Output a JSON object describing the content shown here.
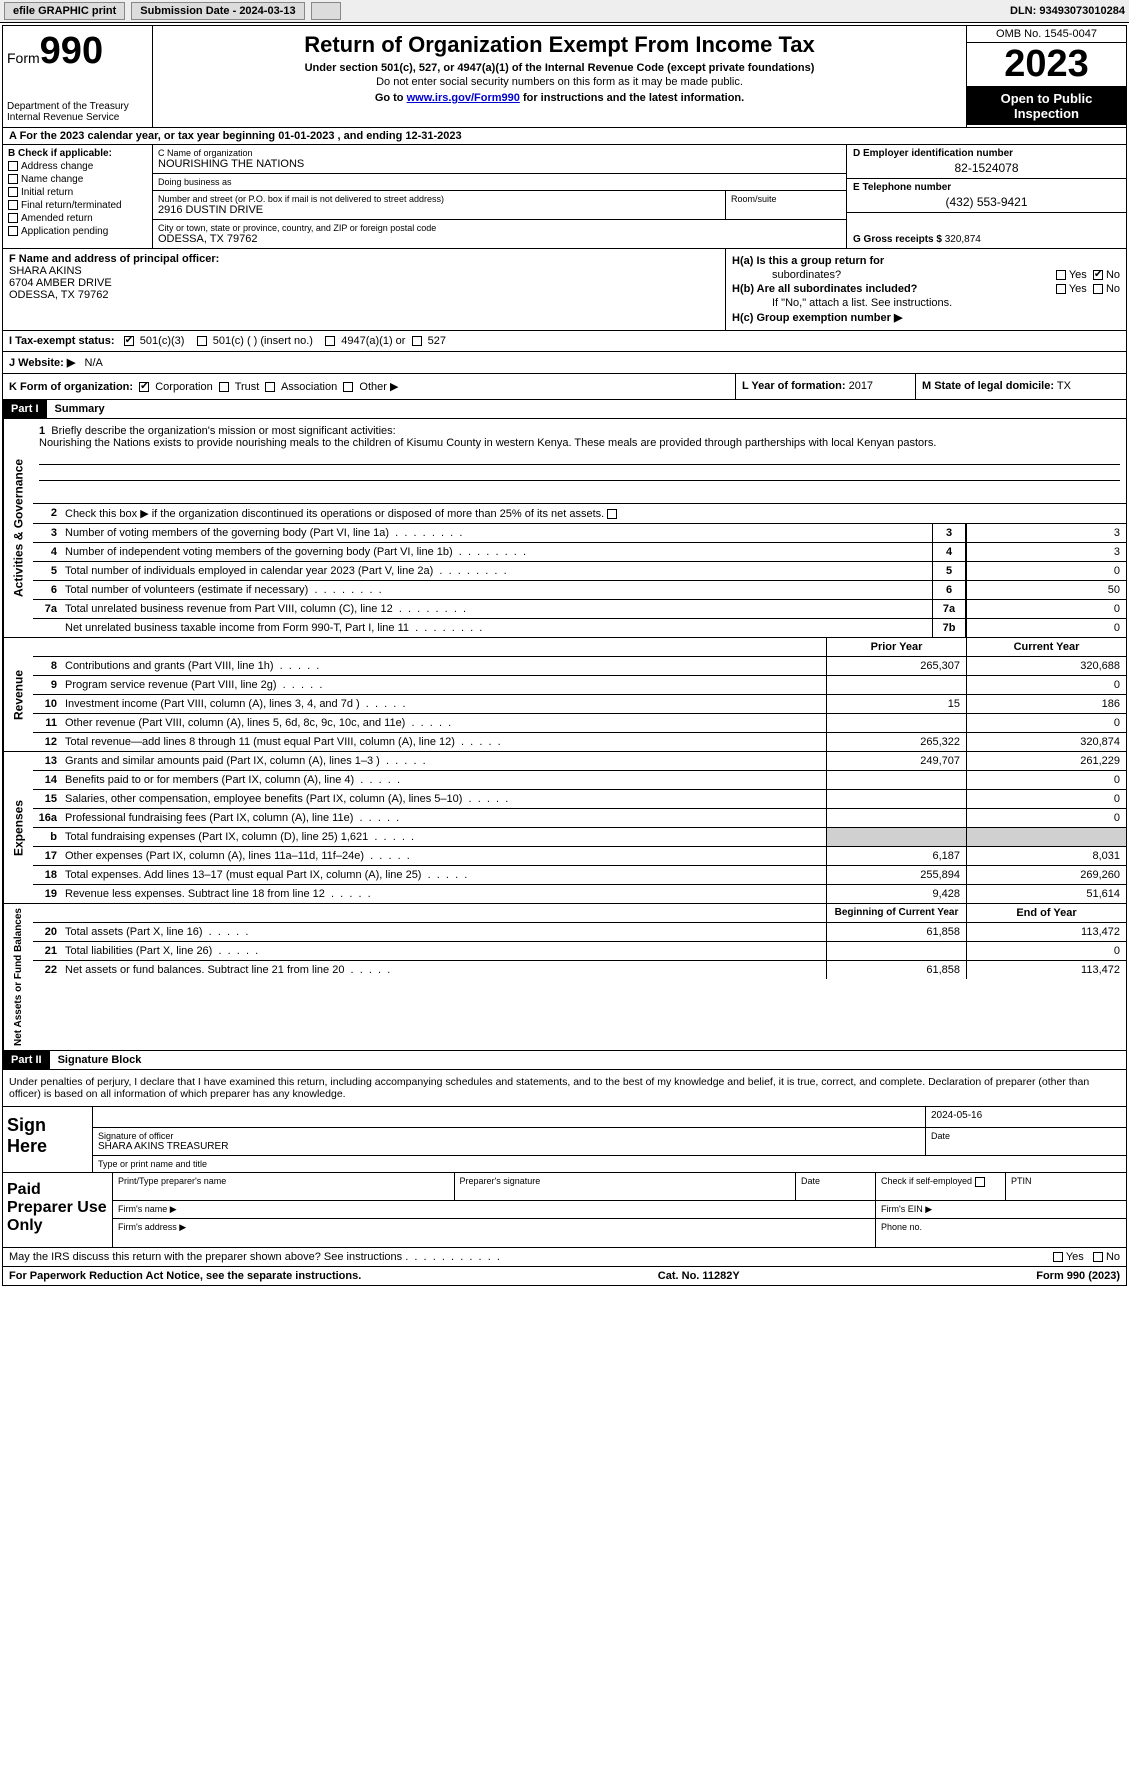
{
  "topbar": {
    "efile_label": "efile GRAPHIC print",
    "submission_label": "Submission Date - 2024-03-13",
    "dln_label": "DLN: 93493073010284"
  },
  "header": {
    "form_label": "Form",
    "form_num": "990",
    "dept": "Department of the Treasury\nInternal Revenue Service",
    "title": "Return of Organization Exempt From Income Tax",
    "sub": "Under section 501(c), 527, or 4947(a)(1) of the Internal Revenue Code (except private foundations)",
    "note": "Do not enter social security numbers on this form as it may be made public.",
    "note2_pre": "Go to ",
    "note2_link": "www.irs.gov/Form990",
    "note2_post": " for instructions and the latest information.",
    "omb": "OMB No. 1545-0047",
    "year": "2023",
    "inspection": "Open to Public Inspection"
  },
  "line_a": "A For the 2023 calendar year, or tax year beginning 01-01-2023    , and ending 12-31-2023",
  "box_b": {
    "label": "B Check if applicable:",
    "items": [
      "Address change",
      "Name change",
      "Initial return",
      "Final return/terminated",
      "Amended return",
      "Application pending"
    ]
  },
  "box_c": {
    "name_label": "C Name of organization",
    "name": "NOURISHING THE NATIONS",
    "dba_label": "Doing business as",
    "dba": "",
    "street_label": "Number and street (or P.O. box if mail is not delivered to street address)",
    "street": "2916 DUSTIN DRIVE",
    "room_label": "Room/suite",
    "room": "",
    "city_label": "City or town, state or province, country, and ZIP or foreign postal code",
    "city": "ODESSA, TX  79762"
  },
  "box_d": {
    "label": "D Employer identification number",
    "val": "82-1524078"
  },
  "box_e": {
    "label": "E Telephone number",
    "val": "(432) 553-9421"
  },
  "box_g": {
    "label": "G Gross receipts $",
    "val": "320,874"
  },
  "box_f": {
    "label": "F  Name and address of principal officer:",
    "name": "SHARA AKINS",
    "addr1": "6704 AMBER DRIVE",
    "addr2": "ODESSA, TX  79762"
  },
  "box_h": {
    "ha_label": "H(a)  Is this a group return for",
    "ha_label2": "subordinates?",
    "ha_yes": "Yes",
    "ha_no": "No",
    "hb_label": "H(b)  Are all subordinates included?",
    "hb_note": "If \"No,\" attach a list. See instructions.",
    "hc_label": "H(c)  Group exemption number ▶"
  },
  "box_i": {
    "label": "I    Tax-exempt status:",
    "opt1": "501(c)(3)",
    "opt2": "501(c) (  ) (insert no.)",
    "opt3": "4947(a)(1) or",
    "opt4": "527"
  },
  "box_j": {
    "label": "J   Website: ▶",
    "val": "N/A"
  },
  "box_k": {
    "label": "K Form of organization:",
    "opt1": "Corporation",
    "opt2": "Trust",
    "opt3": "Association",
    "opt4": "Other ▶"
  },
  "box_l": {
    "label": "L Year of formation:",
    "val": "2017"
  },
  "box_m": {
    "label": "M State of legal domicile:",
    "val": "TX"
  },
  "part1": {
    "header": "Part I",
    "title": "Summary"
  },
  "summary": {
    "governance_label": "Activities & Governance",
    "revenue_label": "Revenue",
    "expenses_label": "Expenses",
    "netassets_label": "Net Assets or Fund Balances",
    "line1_label": "Briefly describe the organization's mission or most significant activities:",
    "line1_text": "Nourishing the Nations exists to provide nourishing meals to the children of Kisumu County in western Kenya. These meals are provided through partherships with local Kenyan pastors.",
    "line2": "Check this box ▶        if the organization discontinued its operations or disposed of more than 25% of its net assets.",
    "lines_gov": [
      {
        "n": "3",
        "d": "Number of voting members of the governing body (Part VI, line 1a)",
        "box": "3",
        "v": "3"
      },
      {
        "n": "4",
        "d": "Number of independent voting members of the governing body (Part VI, line 1b)",
        "box": "4",
        "v": "3"
      },
      {
        "n": "5",
        "d": "Total number of individuals employed in calendar year 2023 (Part V, line 2a)",
        "box": "5",
        "v": "0"
      },
      {
        "n": "6",
        "d": "Total number of volunteers (estimate if necessary)",
        "box": "6",
        "v": "50"
      },
      {
        "n": "7a",
        "d": "Total unrelated business revenue from Part VIII, column (C), line 12",
        "box": "7a",
        "v": "0"
      },
      {
        "n": "",
        "d": "Net unrelated business taxable income from Form 990-T, Part I, line 11",
        "box": "7b",
        "v": "0"
      }
    ],
    "prior_year": "Prior Year",
    "current_year": "Current Year",
    "lines_rev": [
      {
        "n": "8",
        "d": "Contributions and grants (Part VIII, line 1h)",
        "py": "265,307",
        "cy": "320,688"
      },
      {
        "n": "9",
        "d": "Program service revenue (Part VIII, line 2g)",
        "py": "",
        "cy": "0"
      },
      {
        "n": "10",
        "d": "Investment income (Part VIII, column (A), lines 3, 4, and 7d )",
        "py": "15",
        "cy": "186"
      },
      {
        "n": "11",
        "d": "Other revenue (Part VIII, column (A), lines 5, 6d, 8c, 9c, 10c, and 11e)",
        "py": "",
        "cy": "0"
      },
      {
        "n": "12",
        "d": "Total revenue—add lines 8 through 11 (must equal Part VIII, column (A), line 12)",
        "py": "265,322",
        "cy": "320,874"
      }
    ],
    "lines_exp": [
      {
        "n": "13",
        "d": "Grants and similar amounts paid (Part IX, column (A), lines 1–3 )",
        "py": "249,707",
        "cy": "261,229"
      },
      {
        "n": "14",
        "d": "Benefits paid to or for members (Part IX, column (A), line 4)",
        "py": "",
        "cy": "0"
      },
      {
        "n": "15",
        "d": "Salaries, other compensation, employee benefits (Part IX, column (A), lines 5–10)",
        "py": "",
        "cy": "0"
      },
      {
        "n": "16a",
        "d": "Professional fundraising fees (Part IX, column (A), line 11e)",
        "py": "",
        "cy": "0"
      },
      {
        "n": "b",
        "d": "Total fundraising expenses (Part IX, column (D), line 25) 1,621",
        "py": "GRAY",
        "cy": "GRAY"
      },
      {
        "n": "17",
        "d": "Other expenses (Part IX, column (A), lines 11a–11d, 11f–24e)",
        "py": "6,187",
        "cy": "8,031"
      },
      {
        "n": "18",
        "d": "Total expenses. Add lines 13–17 (must equal Part IX, column (A), line 25)",
        "py": "255,894",
        "cy": "269,260"
      },
      {
        "n": "19",
        "d": "Revenue less expenses. Subtract line 18 from line 12",
        "py": "9,428",
        "cy": "51,614"
      }
    ],
    "begin_year": "Beginning of Current Year",
    "end_year": "End of Year",
    "lines_net": [
      {
        "n": "20",
        "d": "Total assets (Part X, line 16)",
        "py": "61,858",
        "cy": "113,472"
      },
      {
        "n": "21",
        "d": "Total liabilities (Part X, line 26)",
        "py": "",
        "cy": "0"
      },
      {
        "n": "22",
        "d": "Net assets or fund balances. Subtract line 21 from line 20",
        "py": "61,858",
        "cy": "113,472"
      }
    ]
  },
  "part2": {
    "header": "Part II",
    "title": "Signature Block",
    "declaration": "Under penalties of perjury, I declare that I have examined this return, including accompanying schedules and statements, and to the best of my knowledge and belief, it is true, correct, and complete. Declaration of preparer (other than officer) is based on all information of which preparer has any knowledge."
  },
  "sign": {
    "here": "Sign Here",
    "date": "2024-05-16",
    "sig_officer": "Signature of officer",
    "officer_name": "SHARA AKINS  TREASURER",
    "type_name": "Type or print name and title",
    "date_label": "Date"
  },
  "paid": {
    "label": "Paid Preparer Use Only",
    "print_name": "Print/Type preparer's name",
    "prep_sig": "Preparer's signature",
    "date_label": "Date",
    "check_label": "Check          if self-employed",
    "ptin": "PTIN",
    "firm_name": "Firm's name     ▶",
    "firm_ein": "Firm's EIN ▶",
    "firm_addr": "Firm's address ▶",
    "phone": "Phone no."
  },
  "discuss": {
    "text": "May the IRS discuss this return with the preparer shown above? See instructions .",
    "yes": "Yes",
    "no": "No"
  },
  "footer": {
    "left": "For Paperwork Reduction Act Notice, see the separate instructions.",
    "center": "Cat. No. 11282Y",
    "right": "Form 990 (2023)"
  }
}
